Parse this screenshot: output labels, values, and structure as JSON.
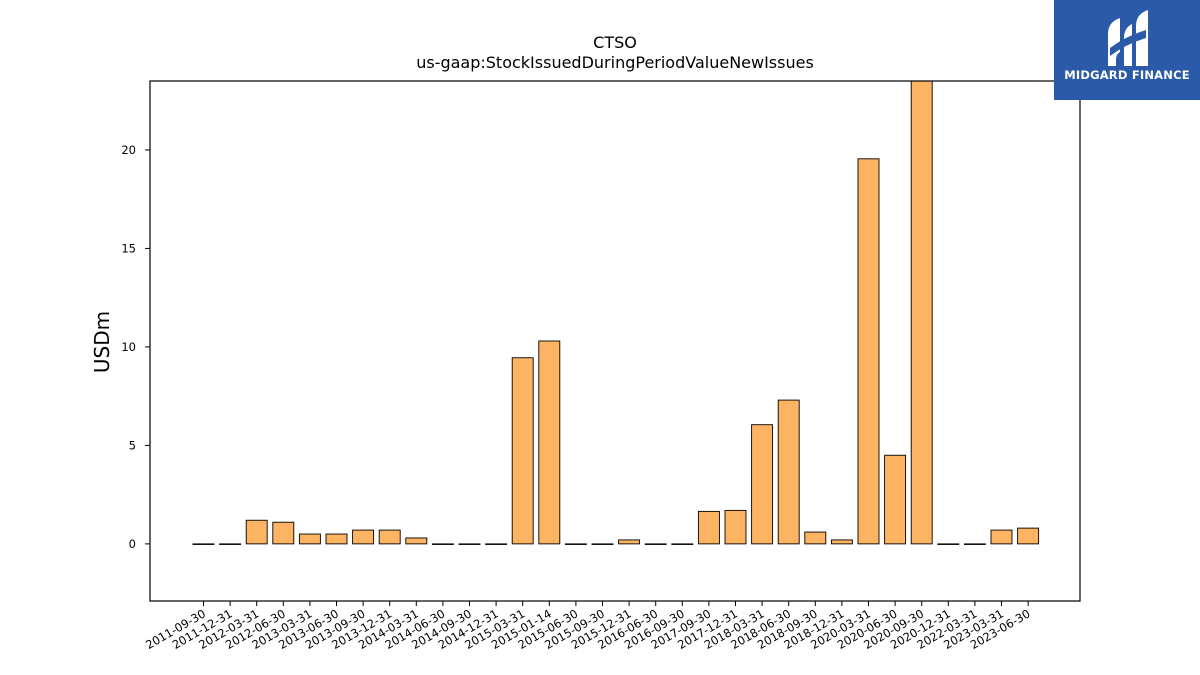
{
  "brand": {
    "name": "MIDGARD FINANCE",
    "color": "#2a5aa8"
  },
  "chart_data": {
    "type": "bar",
    "title": "CTSO",
    "subtitle": "us-gaap:StockIssuedDuringPeriodValueNewIssues",
    "xlabel": "",
    "ylabel": "USDm",
    "ylim": [
      -2.9,
      23.5
    ],
    "yticks": [
      0,
      5,
      10,
      15,
      20
    ],
    "grid": false,
    "bar_color": "#fdb462",
    "categories": [
      "2011-09-30",
      "2011-12-31",
      "2012-03-31",
      "2012-06-30",
      "2013-03-31",
      "2013-06-30",
      "2013-09-30",
      "2013-12-31",
      "2014-03-31",
      "2014-06-30",
      "2014-09-30",
      "2014-12-31",
      "2015-03-31",
      "2015-01-14",
      "2015-06-30",
      "2015-09-30",
      "2015-12-31",
      "2016-06-30",
      "2016-09-30",
      "2017-09-30",
      "2017-12-31",
      "2018-03-31",
      "2018-06-30",
      "2018-09-30",
      "2018-12-31",
      "2020-03-31",
      "2020-06-30",
      "2020-09-30",
      "2020-12-31",
      "2022-03-31",
      "2023-03-31",
      "2023-06-30"
    ],
    "values": [
      0,
      0,
      1.2,
      1.1,
      0.5,
      0.5,
      0.7,
      0.7,
      0.3,
      0,
      0,
      0,
      9.45,
      10.3,
      0,
      0,
      0.2,
      0,
      0,
      1.65,
      1.7,
      6.05,
      7.3,
      0.6,
      0.2,
      19.55,
      4.5,
      23.5,
      0,
      0,
      0.7,
      0.8
    ]
  }
}
